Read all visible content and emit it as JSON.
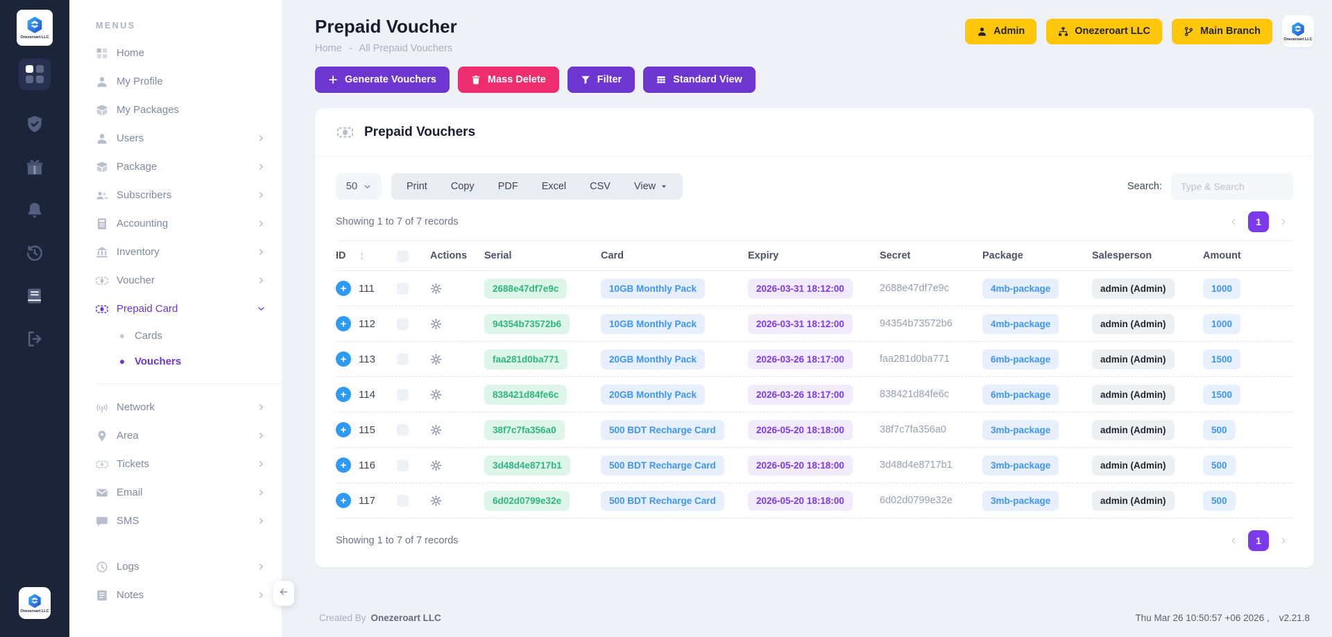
{
  "colors": {
    "accent_purple": "#6e36d1",
    "accent_pink": "#ee2e6e",
    "accent_yellow": "#ffc60a",
    "badge_green": "#2eb67d",
    "badge_blue": "#3e96f4",
    "badge_purple": "#7e3af0",
    "sidebar_dark": "#1c2439"
  },
  "sidebar": {
    "brand": "Onezeroart LLC",
    "menus_label": "MENUS",
    "items": [
      {
        "label": "Home",
        "icon": "grid"
      },
      {
        "label": "My Profile",
        "icon": "user"
      },
      {
        "label": "My Packages",
        "icon": "box"
      },
      {
        "label": "Users",
        "icon": "user",
        "chevron": "right"
      },
      {
        "label": "Package",
        "icon": "box",
        "chevron": "right"
      },
      {
        "label": "Subscribers",
        "icon": "users",
        "chevron": "right"
      },
      {
        "label": "Accounting",
        "icon": "calculator",
        "chevron": "right"
      },
      {
        "label": "Inventory",
        "icon": "bank",
        "chevron": "right"
      },
      {
        "label": "Voucher",
        "icon": "banknote",
        "chevron": "right"
      },
      {
        "label": "Prepaid Card",
        "icon": "banknote",
        "chevron": "down",
        "active": true,
        "children": [
          {
            "label": "Cards",
            "active": false
          },
          {
            "label": "Vouchers",
            "active": true
          }
        ]
      },
      {
        "divider": true
      },
      {
        "label": "Network",
        "icon": "antenna",
        "chevron": "right"
      },
      {
        "label": "Area",
        "icon": "map-pin",
        "chevron": "right"
      },
      {
        "label": "Tickets",
        "icon": "ticket",
        "chevron": "right"
      },
      {
        "label": "Email",
        "icon": "envelope",
        "chevron": "right"
      },
      {
        "label": "SMS",
        "icon": "chat",
        "chevron": "right"
      },
      {
        "spacer": true
      },
      {
        "label": "Logs",
        "icon": "clock",
        "chevron": "right"
      },
      {
        "label": "Notes",
        "icon": "note",
        "chevron": "right"
      }
    ]
  },
  "header": {
    "title": "Prepaid Voucher",
    "breadcrumb": [
      "Home",
      "All Prepaid Vouchers"
    ],
    "breadcrumb_separator": "-",
    "buttons": [
      {
        "label": "Admin",
        "icon": "user"
      },
      {
        "label": "Onezeroart LLC",
        "icon": "sitemap"
      },
      {
        "label": "Main Branch",
        "icon": "branch"
      }
    ]
  },
  "actions": [
    {
      "label": "Generate Vouchers",
      "icon": "plus",
      "style": "purple"
    },
    {
      "label": "Mass Delete",
      "icon": "trash",
      "style": "pink"
    },
    {
      "label": "Filter",
      "icon": "filter",
      "style": "purple"
    },
    {
      "label": "Standard View",
      "icon": "table",
      "style": "purple"
    }
  ],
  "panel": {
    "title": "Prepaid Vouchers",
    "page_size": "50",
    "export_buttons": [
      "Print",
      "Copy",
      "PDF",
      "Excel",
      "CSV"
    ],
    "view_button": "View",
    "search_label": "Search:",
    "search_placeholder": "Type & Search",
    "showing_text": "Showing 1 to 7 of 7 records",
    "page": "1"
  },
  "table": {
    "columns": [
      "ID",
      "Actions",
      "Serial",
      "Card",
      "Expiry",
      "Secret",
      "Package",
      "Salesperson",
      "Amount"
    ],
    "rows": [
      {
        "id": "111",
        "serial": "2688e47df7e9c",
        "card": "10GB Monthly Pack",
        "expiry": "2026-03-31 18:12:00",
        "secret": "2688e47df7e9c",
        "package": "4mb-package",
        "salesperson": "admin (Admin)",
        "amount": "1000"
      },
      {
        "id": "112",
        "serial": "94354b73572b6",
        "card": "10GB Monthly Pack",
        "expiry": "2026-03-31 18:12:00",
        "secret": "94354b73572b6",
        "package": "4mb-package",
        "salesperson": "admin (Admin)",
        "amount": "1000"
      },
      {
        "id": "113",
        "serial": "faa281d0ba771",
        "card": "20GB Monthly Pack",
        "expiry": "2026-03-26 18:17:00",
        "secret": "faa281d0ba771",
        "package": "6mb-package",
        "salesperson": "admin (Admin)",
        "amount": "1500"
      },
      {
        "id": "114",
        "serial": "838421d84fe6c",
        "card": "20GB Monthly Pack",
        "expiry": "2026-03-26 18:17:00",
        "secret": "838421d84fe6c",
        "package": "6mb-package",
        "salesperson": "admin (Admin)",
        "amount": "1500"
      },
      {
        "id": "115",
        "serial": "38f7c7fa356a0",
        "card": "500 BDT Recharge Card",
        "expiry": "2026-05-20 18:18:00",
        "secret": "38f7c7fa356a0",
        "package": "3mb-package",
        "salesperson": "admin (Admin)",
        "amount": "500"
      },
      {
        "id": "116",
        "serial": "3d48d4e8717b1",
        "card": "500 BDT Recharge Card",
        "expiry": "2026-05-20 18:18:00",
        "secret": "3d48d4e8717b1",
        "package": "3mb-package",
        "salesperson": "admin (Admin)",
        "amount": "500"
      },
      {
        "id": "117",
        "serial": "6d02d0799e32e",
        "card": "500 BDT Recharge Card",
        "expiry": "2026-05-20 18:18:00",
        "secret": "6d02d0799e32e",
        "package": "3mb-package",
        "salesperson": "admin (Admin)",
        "amount": "500"
      }
    ]
  },
  "footer": {
    "created_by_label": "Created By",
    "created_by": "Onezeroart LLC",
    "timestamp": "Thu Mar 26 10:50:57 +06 2026 ,",
    "version": "v2.21.8"
  }
}
